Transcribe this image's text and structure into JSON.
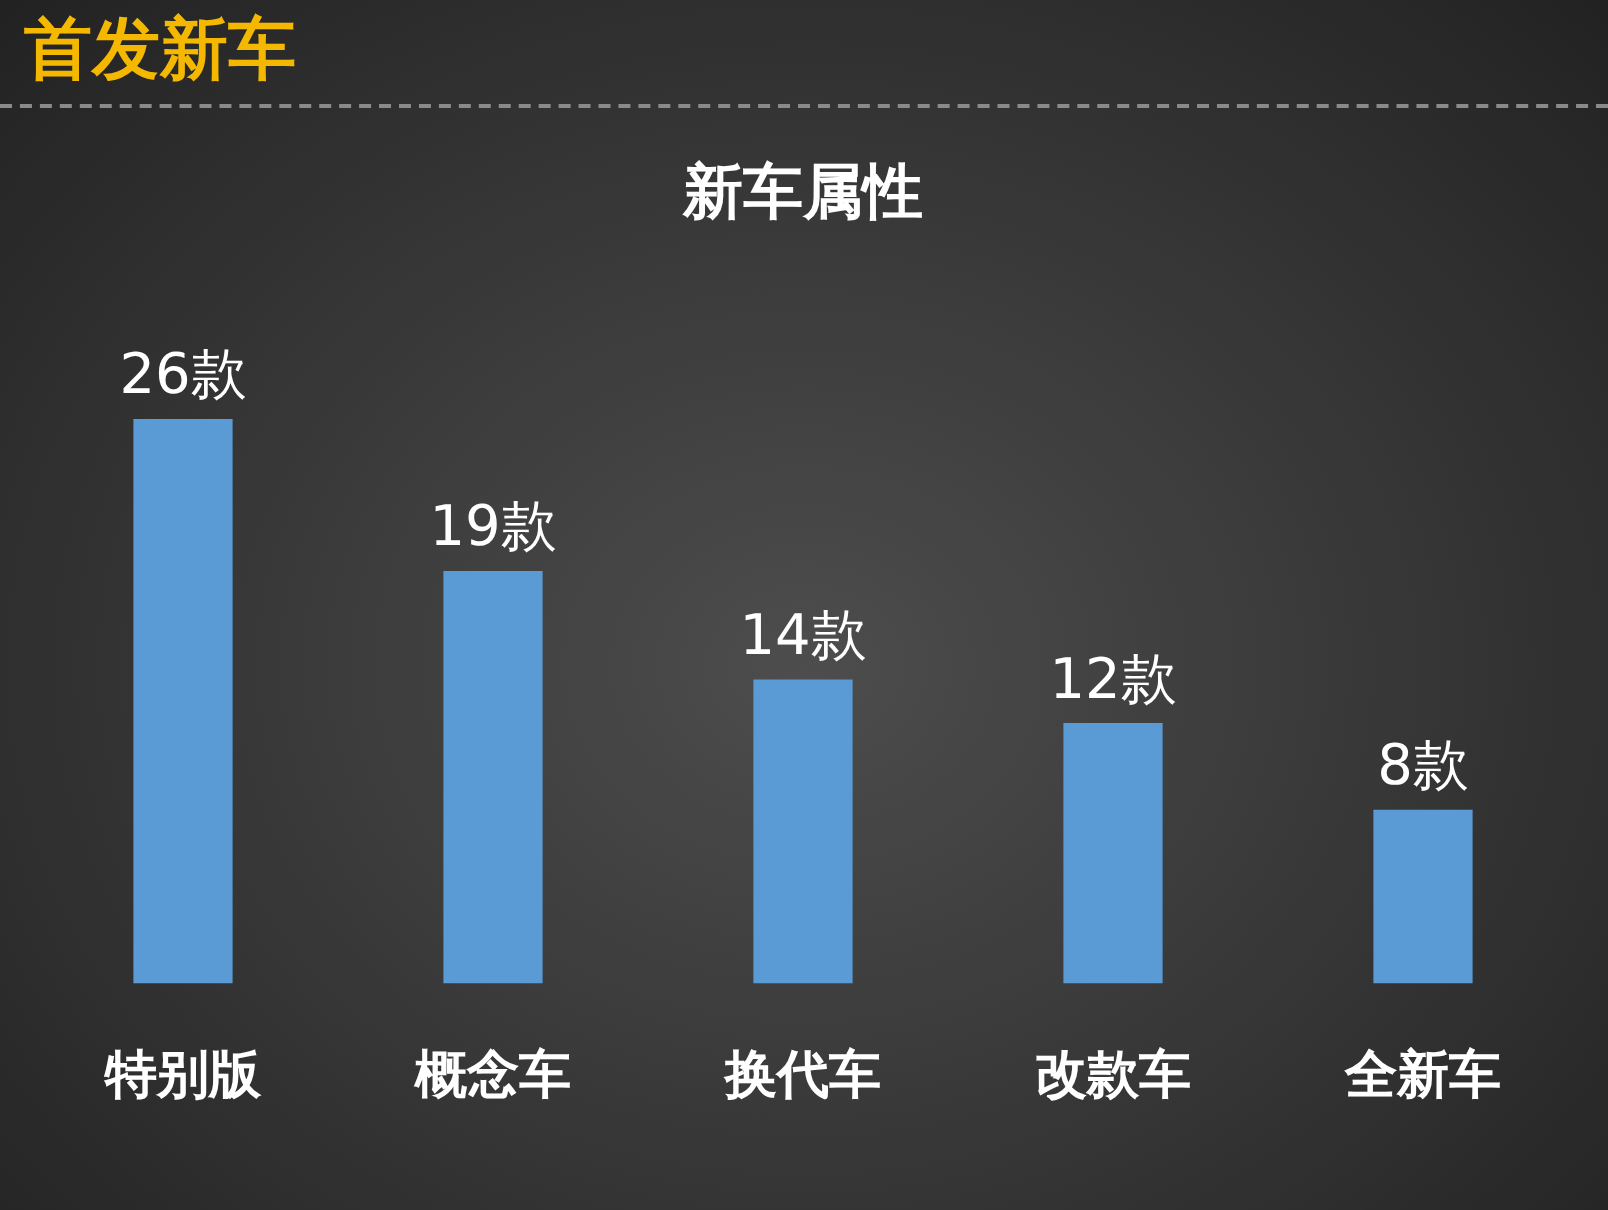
{
  "chart_data": {
    "type": "bar",
    "title": "首发新车",
    "subtitle": "新车属性",
    "categories": [
      "特别版",
      "概念车",
      "换代车",
      "改款车",
      "全新车"
    ],
    "values": [
      26,
      19,
      14,
      12,
      8
    ],
    "value_labels": [
      "26款",
      "19款",
      "14款",
      "12款",
      "8款"
    ],
    "color": "#5b9bd5",
    "grid": false,
    "legend": false
  }
}
